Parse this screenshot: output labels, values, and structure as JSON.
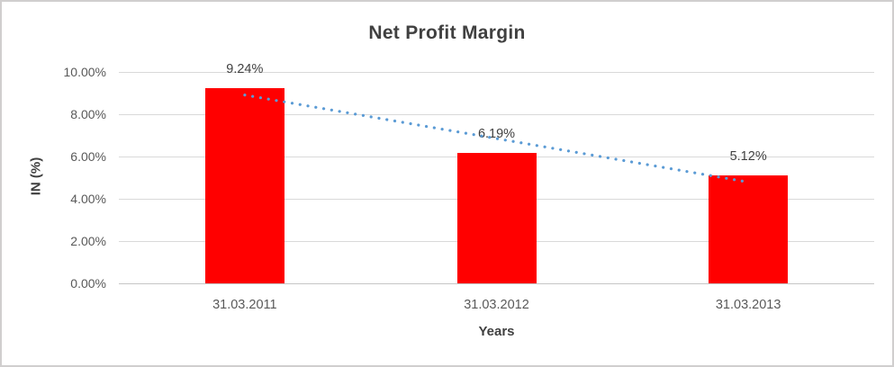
{
  "chart_data": {
    "type": "bar",
    "title": "Net Profit Margin",
    "xlabel": "Years",
    "ylabel": "IN (%)",
    "categories": [
      "31.03.2011",
      "31.03.2012",
      "31.03.2013"
    ],
    "values": [
      9.24,
      6.19,
      5.12
    ],
    "data_labels": [
      "9.24%",
      "6.19%",
      "5.12%"
    ],
    "y_ticks": [
      {
        "value": 0,
        "label": "0.00%"
      },
      {
        "value": 2,
        "label": "2.00%"
      },
      {
        "value": 4,
        "label": "4.00%"
      },
      {
        "value": 6,
        "label": "6.00%"
      },
      {
        "value": 8,
        "label": "8.00%"
      },
      {
        "value": 10,
        "label": "10.00%"
      }
    ],
    "ylim": [
      0,
      10
    ],
    "grid": true,
    "legend": "none",
    "trendline": {
      "type": "linear",
      "style": "dotted",
      "start_value": 8.91,
      "end_value": 4.79
    }
  },
  "colors": {
    "bar": "#ff0000",
    "trendline": "#5b9bd5",
    "gridline": "#d9d9d9",
    "axis_line": "#c6c6c6",
    "title_text": "#404040",
    "axis_title_text": "#404040",
    "data_label_text": "#404040",
    "tick_text": "#595959",
    "border": "#d0cece"
  }
}
